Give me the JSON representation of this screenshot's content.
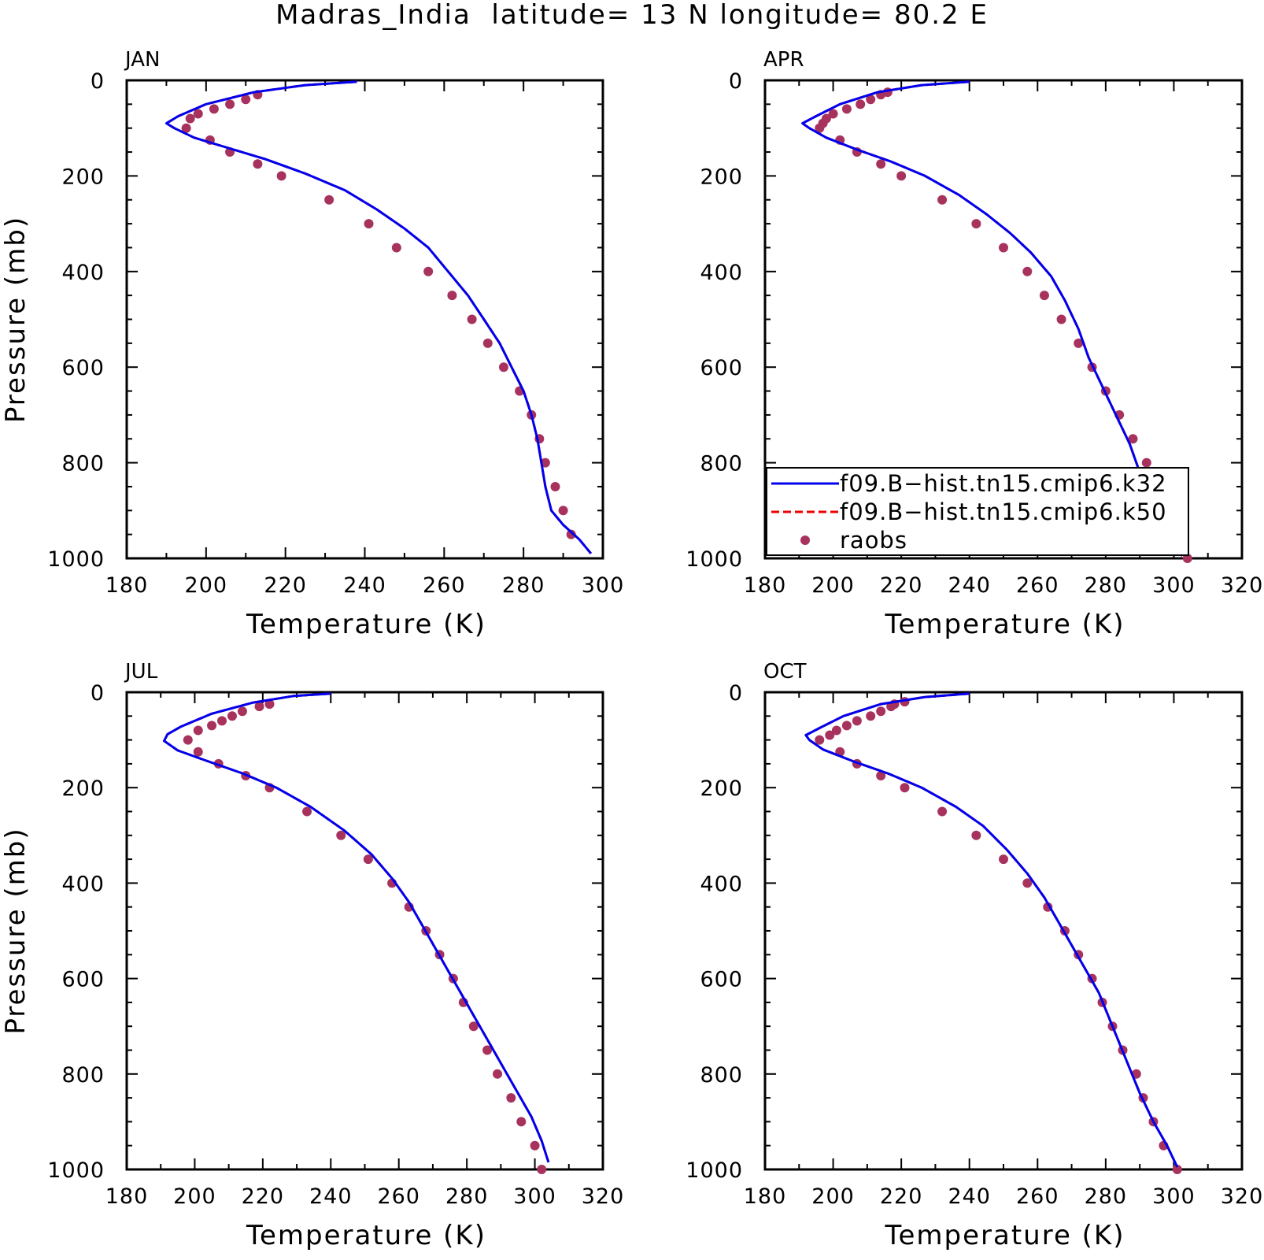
{
  "title": "Madras_India  latitude= 13 N longitude= 80.2 E",
  "legend": {
    "entries": [
      {
        "label": "f09.B−hist.tn15.cmip6.k32",
        "style": "solid",
        "color": "#0000ee"
      },
      {
        "label": "f09.B−hist.tn15.cmip6.k50",
        "style": "dashed",
        "color": "#ee0000"
      },
      {
        "label": "raobs",
        "style": "dot",
        "color": "#a8325e"
      }
    ]
  },
  "colors": {
    "k32": "#0000ee",
    "k50": "#ee0000",
    "raobs": "#a8325e"
  },
  "chart_data": [
    {
      "panel": "JAN",
      "type": "line",
      "xlabel": "Temperature (K)",
      "ylabel": "Pressure (mb)",
      "xlim": [
        180,
        300
      ],
      "ylim": [
        1000,
        0
      ],
      "y_inverted": true,
      "xticks": [
        "180",
        "200",
        "220",
        "240",
        "260",
        "280",
        "300"
      ],
      "yticks": [
        "0",
        "200",
        "400",
        "600",
        "800",
        "1000"
      ],
      "series": [
        {
          "name": "f09.B−hist.tn15.cmip6.k32",
          "style": "solid",
          "x": [
            238,
            225,
            212,
            200,
            193,
            190,
            192,
            197,
            205,
            215,
            225,
            235,
            243,
            250,
            256,
            261,
            266,
            270,
            274,
            277,
            280,
            282,
            283.5,
            284.5,
            285.5,
            287,
            290,
            294,
            297
          ],
          "y": [
            3,
            10,
            25,
            50,
            75,
            90,
            100,
            120,
            140,
            165,
            195,
            230,
            270,
            310,
            350,
            400,
            450,
            500,
            550,
            600,
            650,
            700,
            750,
            800,
            850,
            900,
            930,
            960,
            990
          ]
        },
        {
          "name": "f09.B−hist.tn15.cmip6.k50",
          "style": "dashed",
          "x": [
            238,
            225,
            212,
            200,
            193,
            190,
            192,
            197,
            205,
            215,
            225,
            235,
            243,
            250,
            256,
            261,
            266,
            270,
            274,
            277,
            280,
            282,
            283.5,
            284.5,
            285.5,
            287,
            290,
            294,
            297
          ],
          "y": [
            3,
            10,
            25,
            50,
            75,
            90,
            100,
            120,
            140,
            165,
            195,
            230,
            270,
            310,
            350,
            400,
            450,
            500,
            550,
            600,
            650,
            700,
            750,
            800,
            850,
            900,
            930,
            960,
            990
          ]
        },
        {
          "name": "raobs",
          "style": "dot",
          "x": [
            213,
            210,
            206,
            202,
            198,
            196,
            195,
            201,
            206,
            213,
            219,
            231,
            241,
            248,
            256,
            262,
            267,
            271,
            275,
            279,
            282,
            284,
            285.5,
            288,
            290,
            292
          ],
          "y": [
            30,
            40,
            50,
            60,
            70,
            80,
            100,
            125,
            150,
            175,
            200,
            250,
            300,
            350,
            400,
            450,
            500,
            550,
            600,
            650,
            700,
            750,
            800,
            850,
            900,
            950
          ]
        }
      ]
    },
    {
      "panel": "APR",
      "type": "line",
      "xlabel": "Temperature (K)",
      "ylabel": "",
      "xlim": [
        180,
        320
      ],
      "ylim": [
        1000,
        0
      ],
      "y_inverted": true,
      "xticks": [
        "180",
        "200",
        "220",
        "240",
        "260",
        "280",
        "300",
        "320"
      ],
      "yticks": [
        "0",
        "200",
        "400",
        "600",
        "800",
        "1000"
      ],
      "series": [
        {
          "name": "f09.B−hist.tn15.cmip6.k32",
          "style": "solid",
          "x": [
            240,
            226,
            213,
            202,
            195,
            191,
            193,
            198,
            207,
            217,
            227,
            237,
            245,
            252,
            258,
            264,
            268,
            272,
            275,
            279,
            283,
            287,
            290,
            292,
            294,
            297,
            300,
            302.5
          ],
          "y": [
            3,
            10,
            25,
            50,
            75,
            90,
            100,
            120,
            145,
            170,
            200,
            240,
            280,
            320,
            360,
            410,
            460,
            520,
            580,
            640,
            700,
            760,
            820,
            870,
            910,
            940,
            970,
            995
          ]
        },
        {
          "name": "f09.B−hist.tn15.cmip6.k50",
          "style": "dashed",
          "x": [
            240,
            226,
            213,
            202,
            195,
            191,
            193,
            198,
            207,
            217,
            227,
            237,
            245,
            252,
            258,
            264,
            268,
            272,
            275,
            279,
            283,
            287,
            290,
            292,
            294,
            297,
            300,
            302.5
          ],
          "y": [
            3,
            10,
            25,
            50,
            75,
            90,
            100,
            120,
            145,
            170,
            200,
            240,
            280,
            320,
            360,
            410,
            460,
            520,
            580,
            640,
            700,
            760,
            820,
            870,
            910,
            940,
            970,
            995
          ]
        },
        {
          "name": "raobs",
          "style": "dot",
          "x": [
            216,
            214,
            211,
            208,
            204,
            200,
            198,
            197,
            196,
            202,
            207,
            214,
            220,
            232,
            242,
            250,
            257,
            262,
            267,
            272,
            276,
            280,
            284,
            288,
            292,
            296,
            297,
            299,
            304
          ],
          "y": [
            25,
            30,
            40,
            50,
            60,
            70,
            80,
            90,
            100,
            125,
            150,
            175,
            200,
            250,
            300,
            350,
            400,
            450,
            500,
            550,
            600,
            650,
            700,
            750,
            800,
            850,
            900,
            950,
            1000
          ]
        }
      ]
    },
    {
      "panel": "JUL",
      "type": "line",
      "xlabel": "Temperature (K)",
      "ylabel": "Pressure (mb)",
      "xlim": [
        180,
        320
      ],
      "ylim": [
        1000,
        0
      ],
      "y_inverted": true,
      "xticks": [
        "180",
        "200",
        "220",
        "240",
        "260",
        "280",
        "300",
        "320"
      ],
      "yticks": [
        "0",
        "200",
        "400",
        "600",
        "800",
        "1000"
      ],
      "series": [
        {
          "name": "f09.B−hist.tn15.cmip6.k32",
          "style": "solid",
          "x": [
            240,
            229,
            217,
            205,
            196,
            192,
            191,
            195,
            204,
            214,
            224,
            234,
            244,
            252,
            258,
            263,
            267,
            271,
            275,
            279,
            283,
            287,
            291,
            295,
            299,
            302,
            304
          ],
          "y": [
            3,
            8,
            22,
            45,
            72,
            88,
            102,
            122,
            145,
            170,
            200,
            240,
            290,
            340,
            390,
            440,
            490,
            540,
            590,
            640,
            690,
            740,
            790,
            840,
            890,
            940,
            985
          ]
        },
        {
          "name": "f09.B−hist.tn15.cmip6.k50",
          "style": "dashed",
          "x": [
            240,
            229,
            217,
            205,
            196,
            192,
            191,
            195,
            204,
            214,
            224,
            234,
            244,
            252,
            258,
            263,
            267,
            271,
            275,
            279,
            283,
            287,
            291,
            295,
            299,
            302,
            304
          ],
          "y": [
            3,
            8,
            22,
            45,
            72,
            88,
            102,
            122,
            145,
            170,
            200,
            240,
            290,
            340,
            390,
            440,
            490,
            540,
            590,
            640,
            690,
            740,
            790,
            840,
            890,
            940,
            985
          ]
        },
        {
          "name": "raobs",
          "style": "dot",
          "x": [
            222,
            219,
            214,
            211,
            208,
            205,
            201,
            198,
            201,
            207,
            215,
            222,
            233,
            243,
            251,
            258,
            263,
            268,
            272,
            276,
            279,
            282,
            286,
            289,
            293,
            296,
            300,
            302
          ],
          "y": [
            25,
            30,
            40,
            50,
            60,
            70,
            80,
            100,
            125,
            150,
            175,
            200,
            250,
            300,
            350,
            400,
            450,
            500,
            550,
            600,
            650,
            700,
            750,
            800,
            850,
            900,
            950,
            1000
          ]
        }
      ]
    },
    {
      "panel": "OCT",
      "type": "line",
      "xlabel": "Temperature (K)",
      "ylabel": "",
      "xlim": [
        180,
        320
      ],
      "ylim": [
        1000,
        0
      ],
      "y_inverted": true,
      "xticks": [
        "180",
        "200",
        "220",
        "240",
        "260",
        "280",
        "300",
        "320"
      ],
      "yticks": [
        "0",
        "200",
        "400",
        "600",
        "800",
        "1000"
      ],
      "series": [
        {
          "name": "f09.B−hist.tn15.cmip6.k32",
          "style": "solid",
          "x": [
            240,
            227,
            214,
            203,
            196,
            192,
            193,
            197,
            206,
            216,
            226,
            236,
            244,
            251,
            257,
            262,
            266,
            270,
            274,
            278,
            282,
            286,
            290,
            294,
            298,
            301
          ],
          "y": [
            3,
            10,
            25,
            50,
            75,
            90,
            100,
            120,
            145,
            170,
            200,
            240,
            280,
            330,
            380,
            430,
            480,
            530,
            580,
            630,
            700,
            770,
            840,
            900,
            950,
            995
          ]
        },
        {
          "name": "f09.B−hist.tn15.cmip6.k50",
          "style": "dashed",
          "x": [
            240,
            227,
            214,
            203,
            196,
            192,
            193,
            197,
            206,
            216,
            226,
            236,
            244,
            251,
            257,
            262,
            266,
            270,
            274,
            278,
            282,
            286,
            290,
            294,
            298,
            301
          ],
          "y": [
            3,
            10,
            25,
            50,
            75,
            90,
            100,
            120,
            145,
            170,
            200,
            240,
            280,
            330,
            380,
            430,
            480,
            530,
            580,
            630,
            700,
            770,
            840,
            900,
            950,
            995
          ]
        },
        {
          "name": "raobs",
          "style": "dot",
          "x": [
            221,
            218,
            217,
            214,
            211,
            207,
            204,
            201,
            199,
            196,
            202,
            207,
            214,
            221,
            232,
            242,
            250,
            257,
            263,
            268,
            272,
            276,
            279,
            282,
            285,
            289,
            291,
            294,
            297,
            301
          ],
          "y": [
            20,
            25,
            30,
            40,
            50,
            60,
            70,
            80,
            90,
            100,
            125,
            150,
            175,
            200,
            250,
            300,
            350,
            400,
            450,
            500,
            550,
            600,
            650,
            700,
            750,
            800,
            850,
            900,
            950,
            1000
          ]
        }
      ]
    }
  ]
}
